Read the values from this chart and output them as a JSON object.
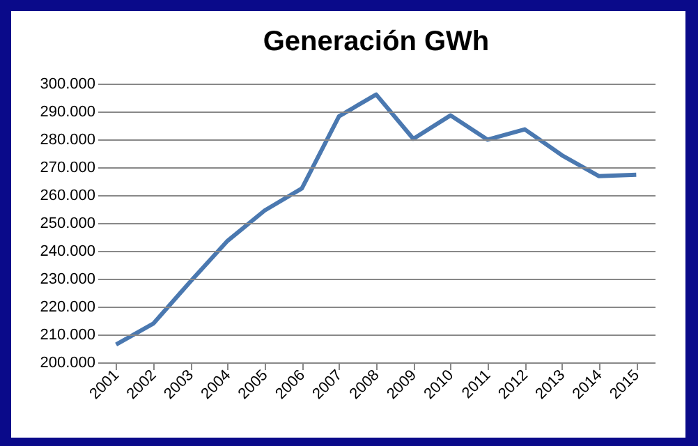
{
  "chart_data": {
    "type": "line",
    "title": "Generación GWh",
    "categories": [
      "2001",
      "2002",
      "2003",
      "2004",
      "2005",
      "2006",
      "2007",
      "2008",
      "2009",
      "2010",
      "2011",
      "2012",
      "2013",
      "2014",
      "2015"
    ],
    "series": [
      {
        "color": "#4a78b0",
        "values": [
          206400,
          213900,
          229000,
          243600,
          254500,
          262400,
          288300,
          296100,
          280200,
          288600,
          279900,
          283600,
          274300,
          266800,
          267300
        ]
      }
    ],
    "ylim": [
      200000,
      300000
    ],
    "yticks": [
      {
        "value": 200000,
        "label": "200.000"
      },
      {
        "value": 210000,
        "label": "210.000"
      },
      {
        "value": 220000,
        "label": "220.000"
      },
      {
        "value": 230000,
        "label": "230.000"
      },
      {
        "value": 240000,
        "label": "240.000"
      },
      {
        "value": 250000,
        "label": "250.000"
      },
      {
        "value": 260000,
        "label": "260.000"
      },
      {
        "value": 270000,
        "label": "270.000"
      },
      {
        "value": 280000,
        "label": "280.000"
      },
      {
        "value": 290000,
        "label": "290.000"
      },
      {
        "value": 300000,
        "label": "300.000"
      }
    ],
    "grid": "y",
    "marker": "none",
    "line_style": "solid"
  }
}
